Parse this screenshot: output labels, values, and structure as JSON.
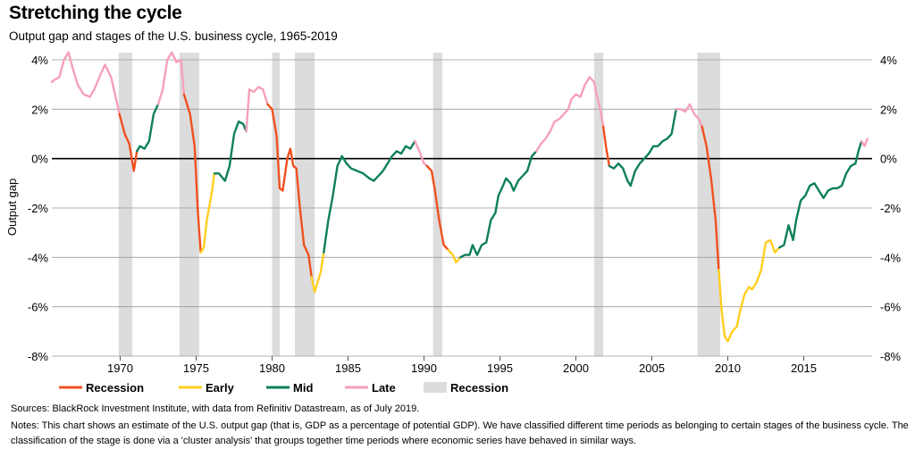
{
  "header": {
    "title": "Stretching the cycle",
    "subtitle": "Output gap and stages of the U.S. business cycle, 1965-2019"
  },
  "footer": {
    "sources": "Sources: BlackRock Investment Institute, with data from Refinitiv Datastream, as of July 2019.",
    "notes": "Notes: This chart shows an estimate of the U.S. output gap (that is, GDP as a percentage of potential GDP). We have classified different time periods as belonging to certain stages of the business cycle. The classification of the stage is done via a 'cluster analysis' that groups together time periods where economic series have behaved in similar ways."
  },
  "colors": {
    "Recession": "#f0501f",
    "Early": "#ffce1f",
    "Mid": "#0e7f5a",
    "Late": "#f6a0b8",
    "recession_band": "#dcdcdc",
    "gridline": "#9a9a9a",
    "zero_line": "#000000"
  },
  "chart_data": {
    "type": "line",
    "title": "",
    "xlabel": "",
    "ylabel": "Output gap",
    "xlim": [
      1965.5,
      2019.5
    ],
    "ylim": [
      -8,
      4
    ],
    "x_ticks": [
      1970,
      1975,
      1980,
      1985,
      1990,
      1995,
      2000,
      2005,
      2010,
      2015
    ],
    "y_ticks": [
      {
        "value": 4,
        "label": "4%"
      },
      {
        "value": 2,
        "label": "2%"
      },
      {
        "value": 0,
        "label": "0%"
      },
      {
        "value": -2,
        "label": "-2%"
      },
      {
        "value": -4,
        "label": "-4%"
      },
      {
        "value": -6,
        "label": "-6%"
      },
      {
        "value": -8,
        "label": "-8%"
      }
    ],
    "grid": true,
    "legend": {
      "placement": "bottom-left",
      "entries": [
        {
          "label": "Recession",
          "kind": "line",
          "color_key": "Recession"
        },
        {
          "label": "Early",
          "kind": "line",
          "color_key": "Early"
        },
        {
          "label": "Mid",
          "kind": "line",
          "color_key": "Mid"
        },
        {
          "label": "Late",
          "kind": "line",
          "color_key": "Late"
        },
        {
          "label": "Recession",
          "kind": "band",
          "color_key": "recession_band"
        }
      ]
    },
    "recession_periods": [
      [
        1969.9,
        1970.8
      ],
      [
        1973.9,
        1975.2
      ],
      [
        1980.0,
        1980.5
      ],
      [
        1981.5,
        1982.8
      ],
      [
        1990.6,
        1991.2
      ],
      [
        2001.2,
        2001.8
      ],
      [
        2008.0,
        2009.5
      ]
    ],
    "series": [
      {
        "stage": "Late",
        "points": [
          [
            1965.5,
            3.1
          ],
          [
            1965.7,
            3.2
          ],
          [
            1966.0,
            3.3
          ],
          [
            1966.3,
            4.0
          ],
          [
            1966.6,
            4.3
          ],
          [
            1966.9,
            3.6
          ],
          [
            1967.2,
            3.0
          ],
          [
            1967.6,
            2.6
          ],
          [
            1968.0,
            2.5
          ],
          [
            1968.3,
            2.8
          ],
          [
            1968.7,
            3.4
          ],
          [
            1969.0,
            3.8
          ],
          [
            1969.4,
            3.3
          ],
          [
            1969.7,
            2.5
          ],
          [
            1969.95,
            1.8
          ]
        ]
      },
      {
        "stage": "Recession",
        "points": [
          [
            1969.95,
            1.8
          ],
          [
            1970.3,
            1.0
          ],
          [
            1970.6,
            0.6
          ],
          [
            1970.9,
            -0.5
          ],
          [
            1971.1,
            0.3
          ]
        ]
      },
      {
        "stage": "Mid",
        "points": [
          [
            1971.1,
            0.3
          ],
          [
            1971.3,
            0.5
          ],
          [
            1971.6,
            0.4
          ],
          [
            1971.9,
            0.7
          ],
          [
            1972.2,
            1.8
          ],
          [
            1972.5,
            2.2
          ]
        ]
      },
      {
        "stage": "Late",
        "points": [
          [
            1972.5,
            2.2
          ],
          [
            1972.8,
            2.8
          ],
          [
            1973.1,
            4.0
          ],
          [
            1973.4,
            4.3
          ],
          [
            1973.7,
            3.9
          ],
          [
            1974.0,
            4.0
          ],
          [
            1974.2,
            2.6
          ]
        ]
      },
      {
        "stage": "Recession",
        "points": [
          [
            1974.2,
            2.6
          ],
          [
            1974.6,
            1.8
          ],
          [
            1974.9,
            0.5
          ],
          [
            1975.1,
            -2.0
          ],
          [
            1975.3,
            -3.8
          ]
        ]
      },
      {
        "stage": "Early",
        "points": [
          [
            1975.3,
            -3.8
          ],
          [
            1975.5,
            -3.6
          ],
          [
            1975.7,
            -2.5
          ],
          [
            1976.0,
            -1.5
          ],
          [
            1976.2,
            -0.6
          ]
        ]
      },
      {
        "stage": "Mid",
        "points": [
          [
            1976.2,
            -0.6
          ],
          [
            1976.5,
            -0.6
          ],
          [
            1976.9,
            -0.9
          ],
          [
            1977.2,
            -0.3
          ],
          [
            1977.5,
            1.0
          ],
          [
            1977.8,
            1.5
          ],
          [
            1978.1,
            1.4
          ],
          [
            1978.3,
            1.1
          ]
        ]
      },
      {
        "stage": "Late",
        "points": [
          [
            1978.3,
            1.1
          ],
          [
            1978.5,
            2.8
          ],
          [
            1978.8,
            2.7
          ],
          [
            1979.1,
            2.9
          ],
          [
            1979.4,
            2.8
          ],
          [
            1979.7,
            2.2
          ]
        ]
      },
      {
        "stage": "Recession",
        "points": [
          [
            1979.7,
            2.2
          ],
          [
            1980.0,
            2.0
          ],
          [
            1980.3,
            0.9
          ],
          [
            1980.5,
            -1.2
          ],
          [
            1980.7,
            -1.3
          ],
          [
            1981.0,
            0.0
          ],
          [
            1981.2,
            0.4
          ],
          [
            1981.4,
            -0.3
          ],
          [
            1981.6,
            -0.4
          ],
          [
            1981.8,
            -1.8
          ],
          [
            1982.1,
            -3.5
          ],
          [
            1982.4,
            -3.9
          ],
          [
            1982.6,
            -4.8
          ]
        ]
      },
      {
        "stage": "Early",
        "points": [
          [
            1982.6,
            -4.8
          ],
          [
            1982.8,
            -5.4
          ],
          [
            1983.0,
            -5.0
          ],
          [
            1983.2,
            -4.6
          ],
          [
            1983.4,
            -3.8
          ]
        ]
      },
      {
        "stage": "Mid",
        "points": [
          [
            1983.4,
            -3.8
          ],
          [
            1983.7,
            -2.5
          ],
          [
            1984.0,
            -1.5
          ],
          [
            1984.3,
            -0.3
          ],
          [
            1984.6,
            0.1
          ],
          [
            1984.9,
            -0.2
          ],
          [
            1985.2,
            -0.4
          ],
          [
            1985.6,
            -0.5
          ],
          [
            1986.0,
            -0.6
          ],
          [
            1986.4,
            -0.8
          ],
          [
            1986.7,
            -0.9
          ],
          [
            1987.0,
            -0.7
          ],
          [
            1987.3,
            -0.5
          ],
          [
            1987.6,
            -0.2
          ],
          [
            1987.9,
            0.1
          ],
          [
            1988.2,
            0.3
          ],
          [
            1988.5,
            0.2
          ],
          [
            1988.8,
            0.5
          ],
          [
            1989.1,
            0.4
          ],
          [
            1989.4,
            0.7
          ]
        ]
      },
      {
        "stage": "Late",
        "points": [
          [
            1989.4,
            0.7
          ],
          [
            1989.7,
            0.3
          ],
          [
            1990.0,
            -0.2
          ],
          [
            1990.2,
            -0.3
          ]
        ]
      },
      {
        "stage": "Recession",
        "points": [
          [
            1990.2,
            -0.3
          ],
          [
            1990.5,
            -0.5
          ],
          [
            1990.7,
            -1.2
          ],
          [
            1991.0,
            -2.5
          ],
          [
            1991.3,
            -3.5
          ],
          [
            1991.6,
            -3.7
          ]
        ]
      },
      {
        "stage": "Early",
        "points": [
          [
            1991.6,
            -3.7
          ],
          [
            1991.9,
            -3.9
          ],
          [
            1992.1,
            -4.2
          ],
          [
            1992.4,
            -4.0
          ]
        ]
      },
      {
        "stage": "Mid",
        "points": [
          [
            1992.4,
            -4.0
          ],
          [
            1992.7,
            -3.9
          ],
          [
            1993.0,
            -3.9
          ],
          [
            1993.2,
            -3.5
          ],
          [
            1993.5,
            -3.9
          ],
          [
            1993.8,
            -3.5
          ],
          [
            1994.1,
            -3.4
          ],
          [
            1994.4,
            -2.5
          ],
          [
            1994.7,
            -2.2
          ],
          [
            1994.9,
            -1.5
          ],
          [
            1995.2,
            -1.1
          ],
          [
            1995.4,
            -0.8
          ],
          [
            1995.7,
            -1.0
          ],
          [
            1995.9,
            -1.3
          ],
          [
            1996.2,
            -0.9
          ],
          [
            1996.5,
            -0.7
          ],
          [
            1996.8,
            -0.5
          ],
          [
            1997.1,
            0.1
          ],
          [
            1997.4,
            0.3
          ]
        ]
      },
      {
        "stage": "Late",
        "points": [
          [
            1997.4,
            0.3
          ],
          [
            1997.7,
            0.6
          ],
          [
            1998.0,
            0.8
          ],
          [
            1998.3,
            1.1
          ],
          [
            1998.6,
            1.5
          ],
          [
            1998.9,
            1.6
          ],
          [
            1999.2,
            1.8
          ],
          [
            1999.5,
            2.0
          ],
          [
            1999.7,
            2.4
          ],
          [
            2000.0,
            2.6
          ],
          [
            2000.3,
            2.5
          ],
          [
            2000.6,
            3.0
          ],
          [
            2000.9,
            3.3
          ],
          [
            2001.2,
            3.1
          ],
          [
            2001.4,
            2.5
          ],
          [
            2001.6,
            2.0
          ],
          [
            2001.8,
            1.3
          ]
        ]
      },
      {
        "stage": "Recession",
        "points": [
          [
            2001.8,
            1.3
          ],
          [
            2002.0,
            0.4
          ],
          [
            2002.2,
            -0.3
          ]
        ]
      },
      {
        "stage": "Mid",
        "points": [
          [
            2002.2,
            -0.3
          ],
          [
            2002.5,
            -0.4
          ],
          [
            2002.8,
            -0.2
          ],
          [
            2003.1,
            -0.4
          ],
          [
            2003.4,
            -0.9
          ],
          [
            2003.6,
            -1.1
          ],
          [
            2003.9,
            -0.5
          ],
          [
            2004.2,
            -0.2
          ],
          [
            2004.5,
            0.0
          ],
          [
            2004.8,
            0.2
          ],
          [
            2005.1,
            0.5
          ],
          [
            2005.4,
            0.5
          ],
          [
            2005.7,
            0.7
          ],
          [
            2006.0,
            0.8
          ],
          [
            2006.3,
            1.0
          ],
          [
            2006.6,
            2.0
          ]
        ]
      },
      {
        "stage": "Late",
        "points": [
          [
            2006.6,
            2.0
          ],
          [
            2006.9,
            2.0
          ],
          [
            2007.2,
            1.9
          ],
          [
            2007.5,
            2.2
          ],
          [
            2007.8,
            1.8
          ],
          [
            2008.1,
            1.6
          ],
          [
            2008.3,
            1.3
          ]
        ]
      },
      {
        "stage": "Recession",
        "points": [
          [
            2008.3,
            1.3
          ],
          [
            2008.6,
            0.5
          ],
          [
            2008.9,
            -0.8
          ],
          [
            2009.2,
            -2.5
          ],
          [
            2009.4,
            -4.5
          ]
        ]
      },
      {
        "stage": "Early",
        "points": [
          [
            2009.4,
            -4.5
          ],
          [
            2009.6,
            -6.2
          ],
          [
            2009.8,
            -7.2
          ],
          [
            2010.0,
            -7.4
          ],
          [
            2010.3,
            -7.0
          ],
          [
            2010.6,
            -6.8
          ],
          [
            2010.8,
            -6.2
          ],
          [
            2011.1,
            -5.5
          ],
          [
            2011.4,
            -5.2
          ],
          [
            2011.6,
            -5.3
          ],
          [
            2011.9,
            -5.0
          ],
          [
            2012.2,
            -4.5
          ],
          [
            2012.5,
            -3.4
          ],
          [
            2012.8,
            -3.3
          ],
          [
            2013.1,
            -3.8
          ],
          [
            2013.4,
            -3.6
          ]
        ]
      },
      {
        "stage": "Mid",
        "points": [
          [
            2013.4,
            -3.6
          ],
          [
            2013.7,
            -3.5
          ],
          [
            2014.0,
            -2.7
          ],
          [
            2014.3,
            -3.3
          ],
          [
            2014.5,
            -2.5
          ],
          [
            2014.8,
            -1.7
          ],
          [
            2015.1,
            -1.5
          ],
          [
            2015.4,
            -1.1
          ],
          [
            2015.7,
            -1.0
          ],
          [
            2016.0,
            -1.3
          ],
          [
            2016.3,
            -1.6
          ],
          [
            2016.6,
            -1.3
          ],
          [
            2016.9,
            -1.2
          ],
          [
            2017.2,
            -1.2
          ],
          [
            2017.5,
            -1.1
          ],
          [
            2017.8,
            -0.6
          ],
          [
            2018.1,
            -0.3
          ],
          [
            2018.4,
            -0.2
          ],
          [
            2018.6,
            0.3
          ],
          [
            2018.8,
            0.7
          ]
        ]
      },
      {
        "stage": "Late",
        "points": [
          [
            2018.8,
            0.7
          ],
          [
            2019.0,
            0.5
          ],
          [
            2019.2,
            0.8
          ]
        ]
      }
    ]
  }
}
